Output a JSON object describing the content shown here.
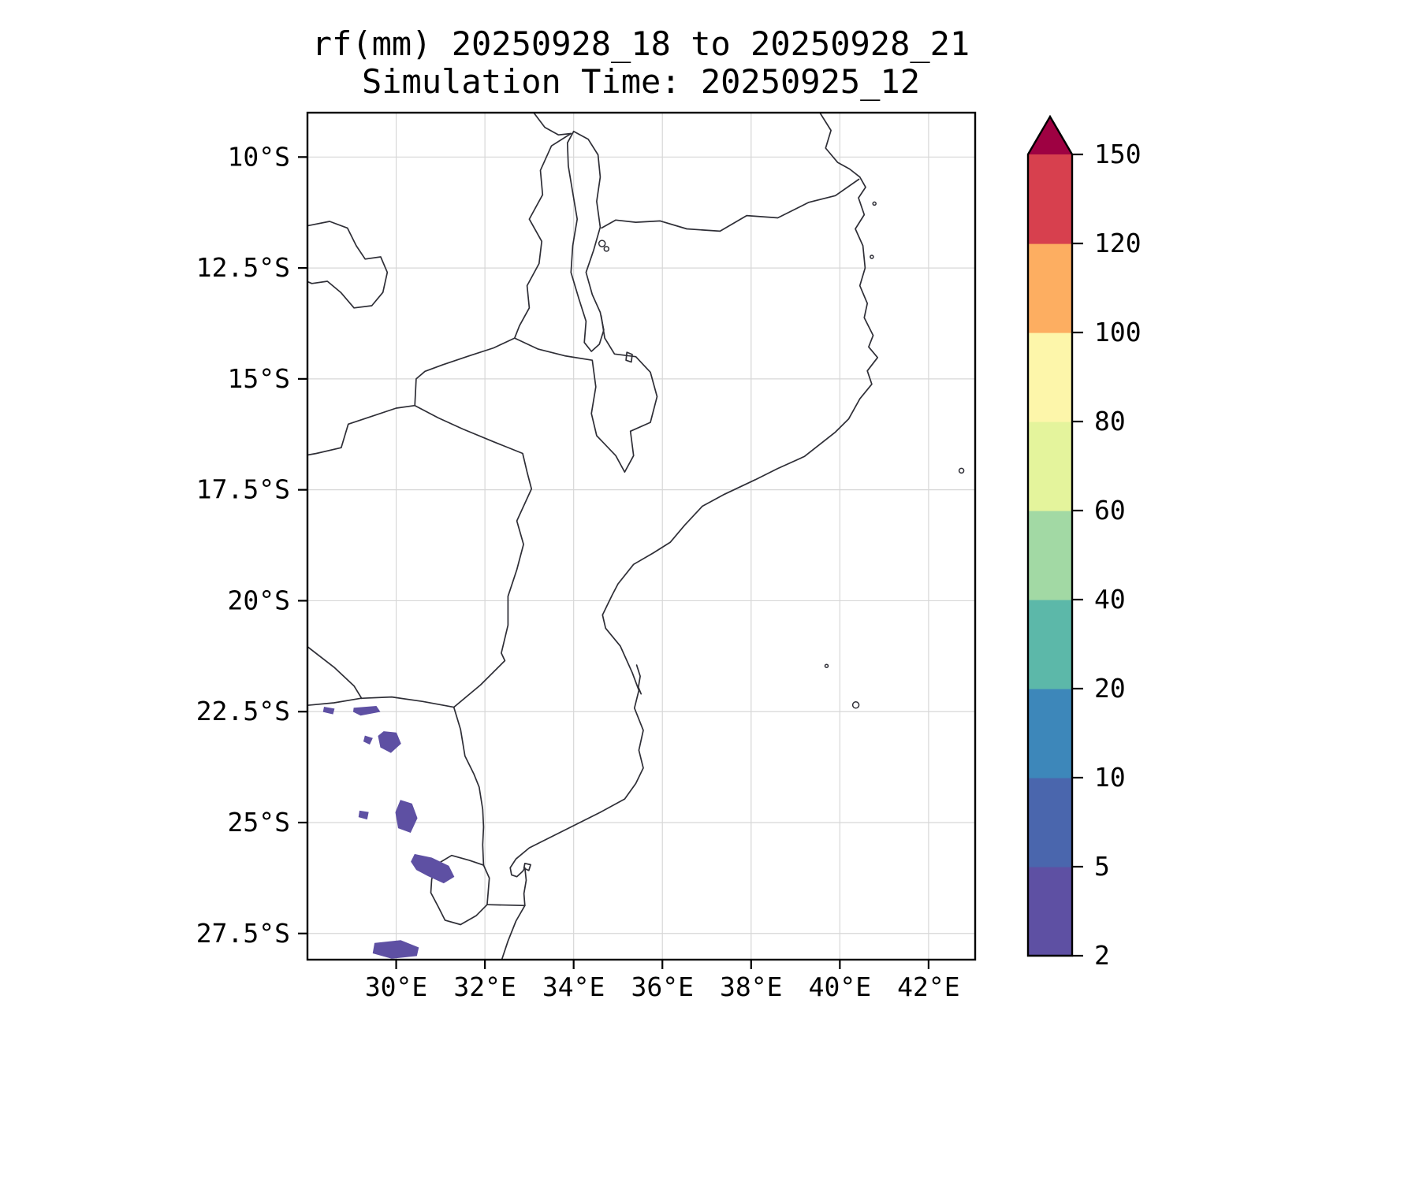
{
  "figure": {
    "title_line1": "rf(mm) 20250928_18 to 20250928_21",
    "title_line2": "Simulation Time: 20250925_12"
  },
  "chart_data": {
    "type": "heatmap",
    "title": "rf(mm) 20250928_18 to 20250928_21",
    "subtitle": "Simulation Time: 20250925_12",
    "variable": "rainfall accumulation",
    "units": "mm",
    "accumulation_window": {
      "start": "20250928_18",
      "end": "20250928_21"
    },
    "simulation_time": "20250925_12",
    "map_extent": {
      "lon_min_deg_e": 28.0,
      "lon_max_deg_e": 43.05,
      "lat_min_deg_s": 9.0,
      "lat_max_deg_s": 28.09
    },
    "grid": true,
    "background_color": "#ffffff",
    "coastline_color": "#2e2e36",
    "x_ticks": [
      {
        "value": 30,
        "label": "30°E"
      },
      {
        "value": 32,
        "label": "32°E"
      },
      {
        "value": 34,
        "label": "34°E"
      },
      {
        "value": 36,
        "label": "36°E"
      },
      {
        "value": 38,
        "label": "38°E"
      },
      {
        "value": 40,
        "label": "40°E"
      },
      {
        "value": 42,
        "label": "42°E"
      }
    ],
    "y_ticks": [
      {
        "value": 10,
        "label": "10°S"
      },
      {
        "value": 12.5,
        "label": "12.5°S"
      },
      {
        "value": 15,
        "label": "15°S"
      },
      {
        "value": 17.5,
        "label": "17.5°S"
      },
      {
        "value": 20,
        "label": "20°S"
      },
      {
        "value": 22.5,
        "label": "22.5°S"
      },
      {
        "value": 25,
        "label": "25°S"
      },
      {
        "value": 27.5,
        "label": "27.5°S"
      }
    ],
    "colorbar": {
      "orientation": "vertical",
      "extend": "max",
      "levels": [
        2,
        5,
        10,
        20,
        40,
        60,
        80,
        100,
        120,
        150
      ],
      "tick_labels": [
        "2",
        "5",
        "10",
        "20",
        "40",
        "60",
        "80",
        "100",
        "120",
        "150"
      ],
      "interval_colors": [
        "#5e50a3",
        "#4a66ad",
        "#3d87ba",
        "#5cb8a9",
        "#a2d9a4",
        "#e4f49c",
        "#fdf6aa",
        "#fdae61",
        "#d7404e"
      ],
      "over_color": "#9e0142"
    },
    "rain_cells": [
      {
        "range_mm": "2-5",
        "polygon": [
          [
            28.38,
            22.4
          ],
          [
            28.6,
            22.44
          ],
          [
            28.57,
            22.55
          ],
          [
            28.36,
            22.5
          ]
        ]
      },
      {
        "range_mm": "2-5",
        "polygon": [
          [
            29.05,
            22.42
          ],
          [
            29.55,
            22.38
          ],
          [
            29.63,
            22.5
          ],
          [
            29.2,
            22.58
          ],
          [
            29.04,
            22.5
          ]
        ]
      },
      {
        "range_mm": "2-5",
        "polygon": [
          [
            29.72,
            22.95
          ],
          [
            30.0,
            22.98
          ],
          [
            30.1,
            23.22
          ],
          [
            29.88,
            23.42
          ],
          [
            29.65,
            23.3
          ],
          [
            29.6,
            23.05
          ]
        ]
      },
      {
        "range_mm": "2-5",
        "polygon": [
          [
            29.3,
            23.05
          ],
          [
            29.46,
            23.1
          ],
          [
            29.4,
            23.23
          ],
          [
            29.27,
            23.17
          ]
        ]
      },
      {
        "range_mm": "2-5",
        "polygon": [
          [
            30.1,
            24.5
          ],
          [
            30.35,
            24.58
          ],
          [
            30.47,
            24.9
          ],
          [
            30.32,
            25.22
          ],
          [
            30.05,
            25.12
          ],
          [
            29.99,
            24.77
          ]
        ]
      },
      {
        "range_mm": "2-5",
        "polygon": [
          [
            29.18,
            24.74
          ],
          [
            29.37,
            24.77
          ],
          [
            29.34,
            24.92
          ],
          [
            29.16,
            24.87
          ]
        ]
      },
      {
        "range_mm": "2-5",
        "polygon": [
          [
            30.42,
            25.72
          ],
          [
            30.8,
            25.8
          ],
          [
            31.18,
            25.98
          ],
          [
            31.3,
            26.22
          ],
          [
            31.07,
            26.36
          ],
          [
            30.72,
            26.2
          ],
          [
            30.46,
            26.06
          ],
          [
            30.34,
            25.88
          ]
        ]
      },
      {
        "range_mm": "2-5",
        "polygon": [
          [
            29.52,
            27.72
          ],
          [
            30.1,
            27.66
          ],
          [
            30.5,
            27.82
          ],
          [
            30.46,
            28.0
          ],
          [
            29.9,
            28.06
          ],
          [
            29.48,
            27.94
          ]
        ]
      }
    ]
  }
}
